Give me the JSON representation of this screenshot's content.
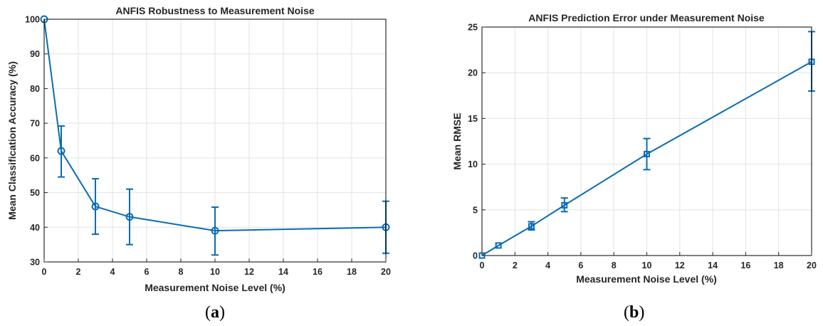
{
  "colors": {
    "series": "#0a6cb3",
    "grid": "#e3e3e3",
    "axis": "#262626",
    "box": "#000000"
  },
  "chart_data": [
    {
      "type": "line",
      "title": "ANFIS Robustness to Measurement Noise",
      "xlabel": "Measurement Noise Level (%)",
      "ylabel": "Mean Classification Accuracy (%)",
      "xlim": [
        0,
        20
      ],
      "ylim": [
        30,
        100
      ],
      "xticks": [
        0,
        2,
        4,
        6,
        8,
        10,
        12,
        14,
        16,
        18,
        20
      ],
      "yticks": [
        30,
        40,
        50,
        60,
        70,
        80,
        90,
        100
      ],
      "grid": true,
      "marker": "circle",
      "series": [
        {
          "x": [
            0,
            1,
            3,
            5,
            10,
            20
          ],
          "values": [
            100,
            62,
            46,
            43,
            39,
            40
          ],
          "error_low": [
            100,
            54.5,
            38,
            35,
            32,
            32.5
          ],
          "error_high": [
            100,
            69.2,
            54,
            51,
            45.8,
            47.5
          ]
        }
      ],
      "panel_label": "a"
    },
    {
      "type": "line",
      "title": "ANFIS Prediction Error under Measurement Noise",
      "xlabel": "Measurement Noise Level (%)",
      "ylabel": "Mean RMSE",
      "xlim": [
        0,
        20
      ],
      "ylim": [
        0,
        25
      ],
      "xticks": [
        0,
        2,
        4,
        6,
        8,
        10,
        12,
        14,
        16,
        18,
        20
      ],
      "yticks": [
        0,
        5,
        10,
        15,
        20,
        25
      ],
      "grid": true,
      "marker": "square",
      "series": [
        {
          "x": [
            0,
            1,
            3,
            5,
            10,
            20
          ],
          "values": [
            0,
            1.1,
            3.2,
            5.5,
            11.1,
            21.2
          ],
          "error_low": [
            0,
            1.1,
            2.8,
            4.8,
            9.4,
            18
          ],
          "error_high": [
            0,
            1.1,
            3.7,
            6.3,
            12.8,
            24.5
          ]
        }
      ],
      "panel_label": "b"
    }
  ]
}
